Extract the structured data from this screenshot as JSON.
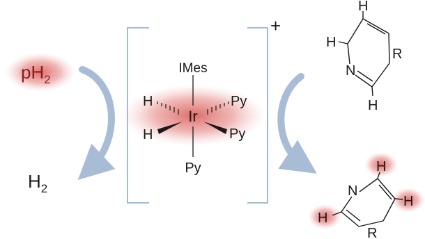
{
  "left": {
    "parahydrogen": {
      "base": "pH",
      "sub": "2"
    },
    "hydrogen": {
      "base": "H",
      "sub": "2"
    }
  },
  "complex": {
    "charge": "+",
    "metal": "Ir",
    "axial_top": "IMes",
    "axial_bottom": "Py",
    "hydride_upper": "H",
    "hydride_lower": "H",
    "py_upper": "Py",
    "py_lower": "Py"
  },
  "substrate": {
    "nitrogen": "N",
    "r_group": "R",
    "h_top": "H",
    "h_left": "H",
    "h_bottom": "H"
  },
  "product": {
    "nitrogen": "N",
    "r_group": "R",
    "h_top": "H",
    "h_left": "H",
    "h_right": "H"
  },
  "colors": {
    "glow": "#d9534f",
    "arrow": "#a9bcd6",
    "bracket": "#7fa6cc",
    "ink": "#1a1a1a"
  },
  "icon_names": [
    "curved-arrow-left-icon",
    "curved-arrow-right-icon"
  ]
}
